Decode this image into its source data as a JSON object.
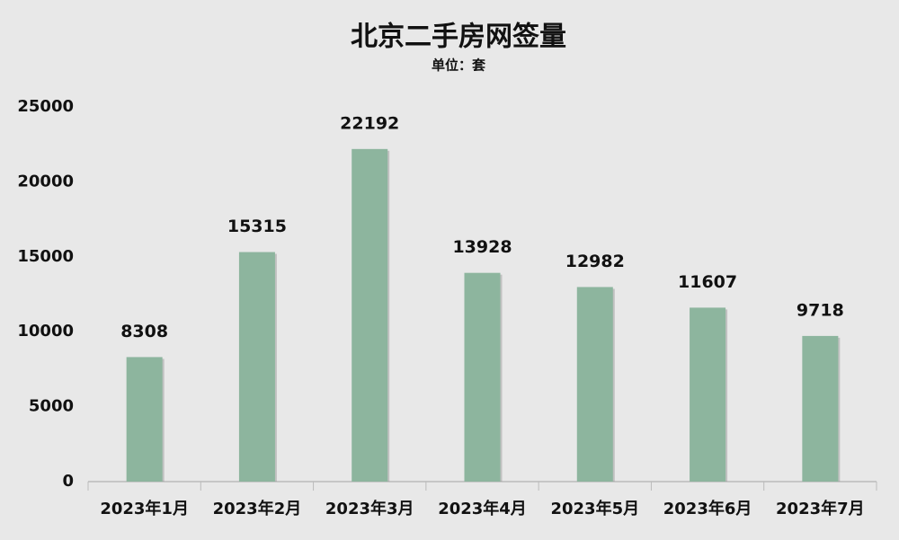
{
  "chart_data": {
    "type": "bar",
    "title": "北京二手房网签量",
    "subtitle": "单位：套",
    "categories": [
      "2023年1月",
      "2023年2月",
      "2023年3月",
      "2023年4月",
      "2023年5月",
      "2023年6月",
      "2023年7月"
    ],
    "values": [
      8308,
      15315,
      22192,
      13928,
      12982,
      11607,
      9718
    ],
    "color": "#8db59e",
    "ylim": [
      0,
      25000
    ],
    "yticks": [
      0,
      5000,
      10000,
      15000,
      20000,
      25000
    ],
    "grid": false
  }
}
